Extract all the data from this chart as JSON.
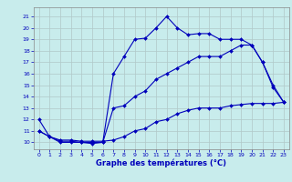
{
  "title": "Graphe des températures (°C)",
  "bg_color": "#c8ecec",
  "grid_color": "#b0c8c8",
  "line_color": "#0000bb",
  "x_ticks": [
    0,
    1,
    2,
    3,
    4,
    5,
    6,
    7,
    8,
    9,
    10,
    11,
    12,
    13,
    14,
    15,
    16,
    17,
    18,
    19,
    20,
    21,
    22,
    23
  ],
  "y_ticks": [
    10,
    11,
    12,
    13,
    14,
    15,
    16,
    17,
    18,
    19,
    20,
    21
  ],
  "xlim": [
    -0.5,
    23.5
  ],
  "ylim": [
    9.4,
    21.8
  ],
  "line1_x": [
    0,
    1,
    2,
    3,
    4,
    5,
    6,
    7,
    8,
    9,
    10,
    11,
    12,
    13,
    14,
    15,
    16,
    17,
    18,
    19,
    20,
    21,
    22,
    23
  ],
  "line1_y": [
    12,
    10.5,
    10.0,
    10.0,
    10.0,
    9.9,
    10.0,
    16.0,
    17.5,
    19.0,
    19.1,
    20.0,
    21.0,
    20.0,
    19.4,
    19.5,
    19.5,
    19.0,
    19.0,
    19.0,
    18.5,
    17.0,
    15.0,
    13.5
  ],
  "line2_x": [
    0,
    1,
    2,
    3,
    4,
    5,
    6,
    7,
    8,
    9,
    10,
    11,
    12,
    13,
    14,
    15,
    16,
    17,
    18,
    19,
    20,
    21,
    22,
    23
  ],
  "line2_y": [
    11,
    10.5,
    10.1,
    10.1,
    10.0,
    10.0,
    10.0,
    13.0,
    13.2,
    14.0,
    14.5,
    15.5,
    16.0,
    16.5,
    17.0,
    17.5,
    17.5,
    17.5,
    18.0,
    18.5,
    18.5,
    17.0,
    14.8,
    13.5
  ],
  "line3_x": [
    0,
    1,
    2,
    3,
    4,
    5,
    6,
    7,
    8,
    9,
    10,
    11,
    12,
    13,
    14,
    15,
    16,
    17,
    18,
    19,
    20,
    21,
    22,
    23
  ],
  "line3_y": [
    11,
    10.5,
    10.2,
    10.2,
    10.1,
    10.1,
    10.1,
    10.2,
    10.5,
    11.0,
    11.2,
    11.8,
    12.0,
    12.5,
    12.8,
    13.0,
    13.0,
    13.0,
    13.2,
    13.3,
    13.4,
    13.4,
    13.4,
    13.5
  ],
  "marker_size": 2.0,
  "line_width": 0.8,
  "tick_fontsize": 4.5,
  "label_fontsize": 6.0
}
